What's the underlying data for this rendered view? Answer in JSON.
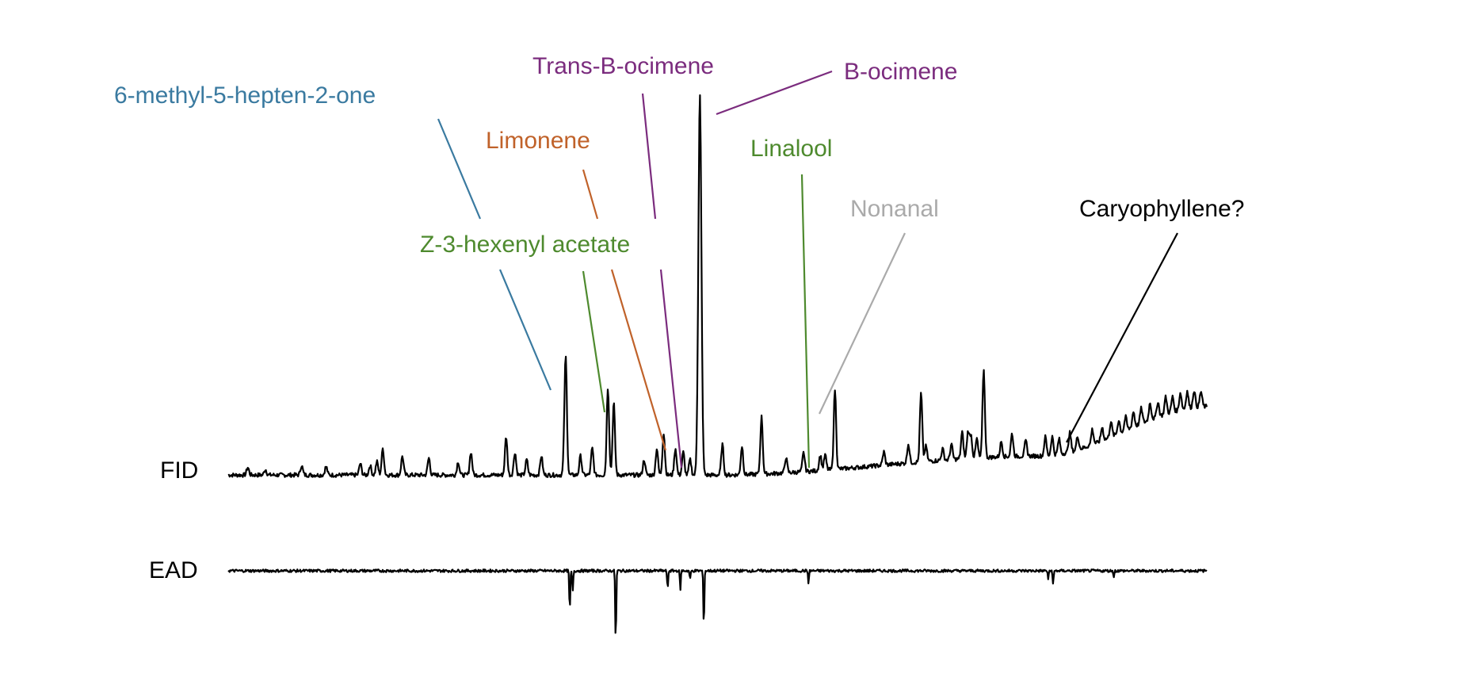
{
  "chart_data": {
    "type": "line",
    "title": "",
    "tracks": [
      {
        "name": "FID",
        "label": "FID"
      },
      {
        "name": "EAD",
        "label": "EAD"
      }
    ],
    "x_range": [
      0,
      100
    ],
    "fid_baseline": 6,
    "fid_ylim": [
      0,
      100
    ],
    "ead_ylim": [
      -100,
      10
    ],
    "fid_peaks": [
      {
        "x": 2.0,
        "h": 2.0
      },
      {
        "x": 3.8,
        "h": 1.5
      },
      {
        "x": 7.5,
        "h": 2.5
      },
      {
        "x": 10.0,
        "h": 2.2
      },
      {
        "x": 13.5,
        "h": 3.0
      },
      {
        "x": 14.5,
        "h": 2.5
      },
      {
        "x": 15.2,
        "h": 3.5
      },
      {
        "x": 15.8,
        "h": 7.0
      },
      {
        "x": 17.8,
        "h": 5.0
      },
      {
        "x": 20.5,
        "h": 4.5
      },
      {
        "x": 23.5,
        "h": 3.5
      },
      {
        "x": 24.8,
        "h": 6.0
      },
      {
        "x": 28.4,
        "h": 10.0
      },
      {
        "x": 29.3,
        "h": 6.0
      },
      {
        "x": 30.5,
        "h": 4.0
      },
      {
        "x": 32.0,
        "h": 5.0
      },
      {
        "x": 34.4,
        "h": 7.0
      },
      {
        "x": 34.5,
        "h": 26.0
      },
      {
        "x": 36.0,
        "h": 5.0
      },
      {
        "x": 37.2,
        "h": 7.0
      },
      {
        "x": 38.8,
        "h": 23.0
      },
      {
        "x": 39.4,
        "h": 19.0
      },
      {
        "x": 42.5,
        "h": 4.0
      },
      {
        "x": 43.8,
        "h": 7.0
      },
      {
        "x": 44.5,
        "h": 11.0
      },
      {
        "x": 45.7,
        "h": 7.0
      },
      {
        "x": 46.5,
        "h": 6.0
      },
      {
        "x": 47.2,
        "h": 4.0
      },
      {
        "x": 48.2,
        "h": 100.0
      },
      {
        "x": 50.5,
        "h": 8.0
      },
      {
        "x": 52.5,
        "h": 7.5
      },
      {
        "x": 54.5,
        "h": 15.0
      },
      {
        "x": 57.0,
        "h": 4.0
      },
      {
        "x": 58.8,
        "h": 5.0
      },
      {
        "x": 60.5,
        "h": 4.0
      },
      {
        "x": 61.0,
        "h": 4.0
      },
      {
        "x": 62.0,
        "h": 21.0
      },
      {
        "x": 67.0,
        "h": 3.5
      },
      {
        "x": 69.5,
        "h": 5.0
      },
      {
        "x": 70.8,
        "h": 18.0
      },
      {
        "x": 71.3,
        "h": 4.0
      },
      {
        "x": 73.0,
        "h": 3.0
      },
      {
        "x": 73.9,
        "h": 4.0
      },
      {
        "x": 75.0,
        "h": 7.0
      },
      {
        "x": 75.6,
        "h": 7.0
      },
      {
        "x": 75.9,
        "h": 6.0
      },
      {
        "x": 76.5,
        "h": 5.0
      },
      {
        "x": 77.2,
        "h": 23.0
      },
      {
        "x": 79.0,
        "h": 4.0
      },
      {
        "x": 80.1,
        "h": 6.0
      },
      {
        "x": 81.5,
        "h": 4.0
      },
      {
        "x": 83.5,
        "h": 5.0
      },
      {
        "x": 84.2,
        "h": 5.0
      },
      {
        "x": 84.9,
        "h": 4.0
      },
      {
        "x": 86.0,
        "h": 5.0
      },
      {
        "x": 86.8,
        "h": 3.5
      },
      {
        "x": 88.3,
        "h": 4.0
      },
      {
        "x": 89.3,
        "h": 3.5
      },
      {
        "x": 90.2,
        "h": 4.0
      },
      {
        "x": 91.0,
        "h": 3.5
      },
      {
        "x": 91.7,
        "h": 3.5
      },
      {
        "x": 92.5,
        "h": 4.0
      },
      {
        "x": 93.3,
        "h": 4.0
      },
      {
        "x": 94.2,
        "h": 4.5
      },
      {
        "x": 95.0,
        "h": 4.0
      },
      {
        "x": 95.8,
        "h": 4.5
      },
      {
        "x": 96.5,
        "h": 4.0
      },
      {
        "x": 97.3,
        "h": 4.5
      },
      {
        "x": 98.0,
        "h": 4.5
      },
      {
        "x": 98.7,
        "h": 4.5
      },
      {
        "x": 99.4,
        "h": 4.0
      }
    ],
    "fid_drift": [
      {
        "x": 0,
        "y": 0
      },
      {
        "x": 50,
        "y": 0
      },
      {
        "x": 83,
        "y": 5
      },
      {
        "x": 100,
        "y": 18
      }
    ],
    "ead_responses": [
      {
        "x": 34.9,
        "y": -48
      },
      {
        "x": 35.2,
        "y": -24
      },
      {
        "x": 39.6,
        "y": -85
      },
      {
        "x": 44.9,
        "y": -22
      },
      {
        "x": 46.2,
        "y": -22
      },
      {
        "x": 47.2,
        "y": -10
      },
      {
        "x": 48.6,
        "y": -68
      },
      {
        "x": 59.3,
        "y": -14
      },
      {
        "x": 83.8,
        "y": -10
      },
      {
        "x": 84.3,
        "y": -16
      },
      {
        "x": 90.5,
        "y": -7
      }
    ],
    "annotations": [
      {
        "label": "6-methyl-5-hepten-2-one",
        "color": "#3A7AA0",
        "peak_x": 34.5
      },
      {
        "label": "Z-3-hexenyl acetate",
        "color": "#4E8A2E",
        "peak_x": 38.8
      },
      {
        "label": "Limonene",
        "color": "#C0622A",
        "peak_x": 44.5
      },
      {
        "label": "Trans-B-ocimene",
        "color": "#7B2C7E",
        "peak_x": 46.5
      },
      {
        "label": "B-ocimene",
        "color": "#7B2C7E",
        "peak_x": 48.5
      },
      {
        "label": "Linalool",
        "color": "#4E8A2E",
        "peak_x": 59.0
      },
      {
        "label": "Nonanal",
        "color": "#AAAAAA",
        "peak_x": 60.5
      },
      {
        "label": "Caryophyllene?",
        "color": "#000000",
        "peak_x": 85.0
      }
    ],
    "grid": false,
    "legend": "none"
  }
}
